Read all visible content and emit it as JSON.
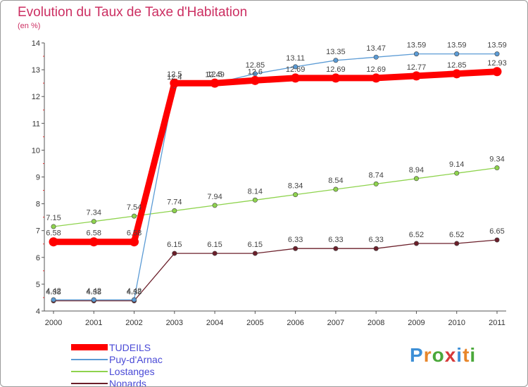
{
  "chart_data": {
    "type": "line",
    "title": "Evolution du Taux de Taxe d'Habitation",
    "subtitle": "(en %)",
    "x": [
      "2000",
      "2001",
      "2002",
      "2003",
      "2004",
      "2005",
      "2006",
      "2007",
      "2008",
      "2009",
      "2010",
      "2011"
    ],
    "ylim": [
      4,
      14
    ],
    "yticks": [
      "4",
      "5",
      "6",
      "7",
      "8",
      "9",
      "10",
      "11",
      "12",
      "13",
      "14"
    ],
    "grid": false,
    "legend_position": "bottom-left",
    "series": [
      {
        "name": "TUDEILS",
        "color": "#ff0000",
        "values": [
          6.58,
          6.58,
          6.58,
          12.5,
          12.5,
          12.6,
          12.69,
          12.69,
          12.69,
          12.77,
          12.85,
          12.93
        ],
        "labels": [
          "6.58",
          "6.58",
          "6.58",
          "12.5",
          "12.5",
          "12.6",
          "12.69",
          "12.69",
          "12.69",
          "12.77",
          "12.85",
          "12.93"
        ]
      },
      {
        "name": "Puy-d'Arnac",
        "color": "#5b9bd5",
        "values": [
          4.42,
          4.42,
          4.42,
          12.4,
          12.49,
          12.85,
          13.11,
          13.35,
          13.47,
          13.59,
          13.59,
          13.59
        ],
        "labels": [
          "4.42",
          "4.42",
          "4.42",
          "12.4",
          "12.49",
          "12.85",
          "13.11",
          "13.35",
          "13.47",
          "13.59",
          "13.59",
          "13.59"
        ]
      },
      {
        "name": "Lostanges",
        "color": "#8ed34d",
        "values": [
          7.15,
          7.34,
          7.54,
          7.74,
          7.94,
          8.14,
          8.34,
          8.54,
          8.74,
          8.94,
          9.14,
          9.34
        ],
        "labels": [
          "7.15",
          "7.34",
          "7.54",
          "7.74",
          "7.94",
          "8.14",
          "8.34",
          "8.54",
          "8.74",
          "8.94",
          "9.14",
          "9.34"
        ]
      },
      {
        "name": "Nonards",
        "color": "#6b1f2a",
        "values": [
          4.38,
          4.38,
          4.38,
          6.15,
          6.15,
          6.15,
          6.33,
          6.33,
          6.33,
          6.52,
          6.52,
          6.65
        ],
        "labels": [
          "4.38",
          "4.38",
          "4.38",
          "6.15",
          "6.15",
          "6.15",
          "6.33",
          "6.33",
          "6.33",
          "6.52",
          "6.52",
          "6.65"
        ]
      }
    ]
  },
  "logo": {
    "text": "Proxiti",
    "letters": [
      "P",
      "r",
      "o",
      "x",
      "i",
      "t",
      "i"
    ],
    "colors": [
      "#3d8fd6",
      "#e8862a",
      "#4aa83a",
      "#d63a3a",
      "#3d8fd6",
      "#e8862a",
      "#4aa83a"
    ]
  }
}
